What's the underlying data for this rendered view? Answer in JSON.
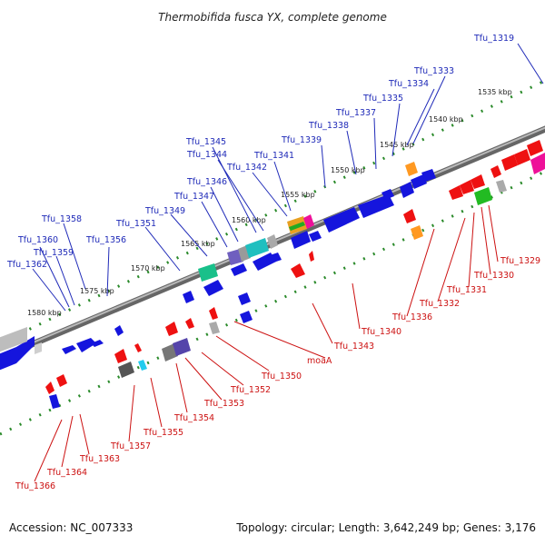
{
  "title": "Thermobifida fusca YX, complete genome",
  "footer": {
    "accession": "Accession: NC_007333",
    "summary": "Topology: circular; Length: 3,642,249 bp; Genes: 3,176"
  },
  "colors": {
    "plus_label": "#1f2ab8",
    "minus_label": "#cc1111",
    "plus_gene": "#1010dd",
    "minus_gene": "#ee1111",
    "ruler_dots": "#2a8a2a",
    "backbone": "#777777"
  },
  "scale": {
    "unit": "kbp",
    "ticks": [
      "1535 kbp",
      "1540 kbp",
      "1545 kbp",
      "1550 kbp",
      "1555 kbp",
      "1560 kbp",
      "1565 kbp",
      "1570 kbp",
      "1575 kbp",
      "1580 kbp"
    ]
  },
  "genes": {
    "plus_strand": [
      "Tfu_1319",
      "Tfu_1333",
      "Tfu_1334",
      "Tfu_1335",
      "Tfu_1337",
      "Tfu_1338",
      "Tfu_1339",
      "Tfu_1341",
      "Tfu_1342",
      "Tfu_1344",
      "Tfu_1345",
      "Tfu_1346",
      "Tfu_1347",
      "Tfu_1349",
      "Tfu_1351",
      "Tfu_1356",
      "Tfu_1358",
      "Tfu_1359",
      "Tfu_1360",
      "Tfu_1362"
    ],
    "minus_strand": [
      "Tfu_1329",
      "Tfu_1330",
      "Tfu_1331",
      "Tfu_1332",
      "Tfu_1336",
      "Tfu_1340",
      "Tfu_1343",
      "moaA",
      "Tfu_1350",
      "Tfu_1352",
      "Tfu_1353",
      "Tfu_1354",
      "Tfu_1355",
      "Tfu_1357",
      "Tfu_1363",
      "Tfu_1364",
      "Tfu_1366"
    ]
  }
}
